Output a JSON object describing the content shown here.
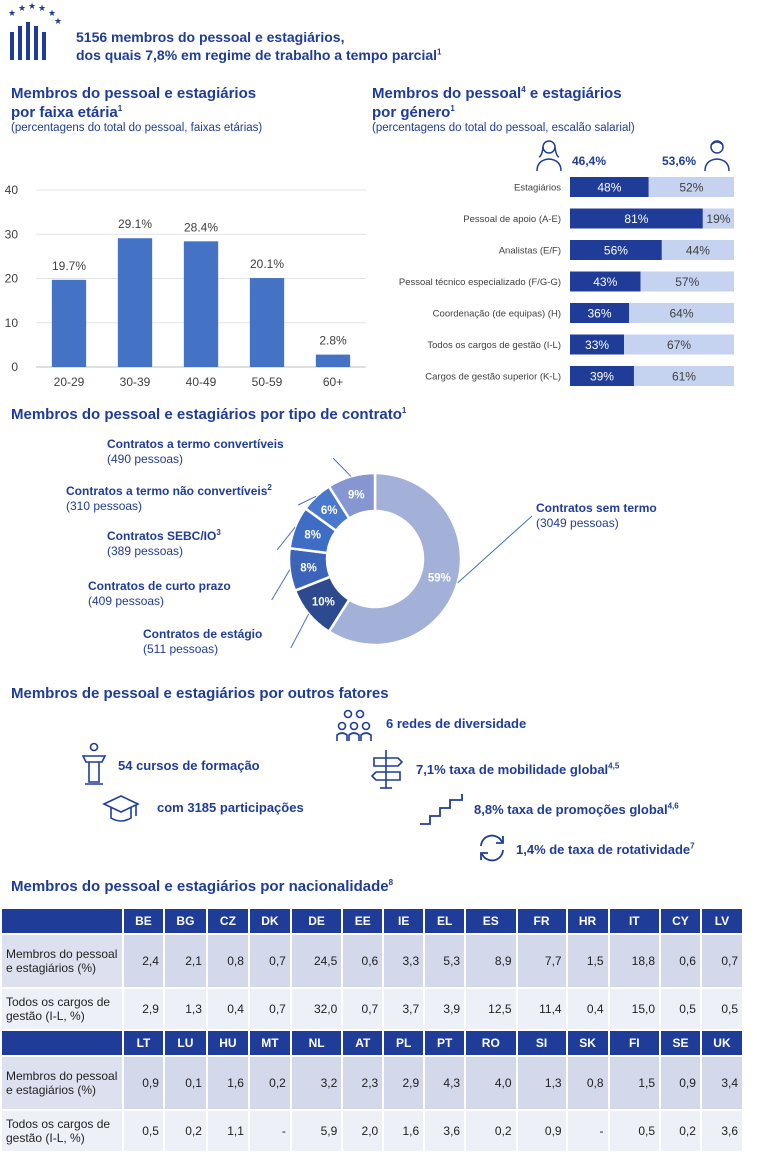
{
  "header": {
    "line1": "5156 membros do pessoal e estagiários,",
    "line2": "dos quais 7,8% em regime de trabalho a tempo parcial",
    "line2_sup": "1"
  },
  "age_section": {
    "title1": "Membros do pessoal e estagiários",
    "title2": "por faixa etária",
    "title2_sup": "1",
    "subtitle": "(percentagens do total do pessoal, faixas etárias)"
  },
  "gender_section": {
    "title1": "Membros do pessoal",
    "title1_sup": "4",
    "title1_rest": " e estagiários",
    "title2": "por género",
    "title2_sup": "1",
    "subtitle": "(percentagens do total do pessoal, escalão salarial)",
    "female_total": "46,4%",
    "male_total": "53,6%"
  },
  "contract_section": {
    "title": "Membros do pessoal e estagiários por tipo de contrato",
    "title_sup": "1"
  },
  "factors_section": {
    "title": "Membros de pessoal e estagiários por outros fatores",
    "diversity": "6 redes de diversidade",
    "courses": "54 cursos de formação",
    "participants": "com 3185 participações",
    "mobility": "7,1% taxa de mobilidade global",
    "mobility_sup": "4,5",
    "promotions": "8,8% taxa de promoções global",
    "promotions_sup": "4,6",
    "turnover": "1,4% de taxa de rotatividade",
    "turnover_sup": "7"
  },
  "nationality_section": {
    "title": "Membros do pessoal e estagiários por nacionalidade",
    "title_sup": "8",
    "row_label_staff": "Membros do pessoal e estagiários (%)",
    "row_label_mgmt": "Todos os cargos de gestão (I-L, %)",
    "blocks": [
      {
        "codes": [
          "BE",
          "BG",
          "CZ",
          "DK",
          "DE",
          "EE",
          "IE",
          "EL",
          "ES",
          "FR",
          "HR",
          "IT",
          "CY",
          "LV"
        ],
        "staff": [
          "2,4",
          "2,1",
          "0,8",
          "0,7",
          "24,5",
          "0,6",
          "3,3",
          "5,3",
          "8,9",
          "7,7",
          "1,5",
          "18,8",
          "0,6",
          "0,7"
        ],
        "mgmt": [
          "2,9",
          "1,3",
          "0,4",
          "0,7",
          "32,0",
          "0,7",
          "3,7",
          "3,9",
          "12,5",
          "11,4",
          "0,4",
          "15,0",
          "0,5",
          "0,5"
        ]
      },
      {
        "codes": [
          "LT",
          "LU",
          "HU",
          "MT",
          "NL",
          "AT",
          "PL",
          "PT",
          "RO",
          "SI",
          "SK",
          "FI",
          "SE",
          "UK"
        ],
        "staff": [
          "0,9",
          "0,1",
          "1,6",
          "0,2",
          "3,2",
          "2,3",
          "2,9",
          "4,3",
          "4,0",
          "1,3",
          "0,8",
          "1,5",
          "0,9",
          "3,4"
        ],
        "mgmt": [
          "0,5",
          "0,2",
          "1,1",
          "-",
          "5,9",
          "2,0",
          "1,6",
          "3,6",
          "0,2",
          "0,9",
          "-",
          "0,5",
          "0,2",
          "3,6"
        ]
      }
    ]
  },
  "chart_data": [
    {
      "type": "bar",
      "title": "Membros do pessoal e estagiários por faixa etária",
      "categories": [
        "20-29",
        "30-39",
        "40-49",
        "50-59",
        "60+"
      ],
      "values": [
        19.7,
        29.1,
        28.4,
        20.1,
        2.8
      ],
      "value_labels": [
        "19.7%",
        "29.1%",
        "28.4%",
        "20.1%",
        "2.8%"
      ],
      "ylim": [
        0,
        40
      ],
      "yticks": [
        0,
        10,
        20,
        30,
        40
      ],
      "grid": true,
      "color": "#4472c4"
    },
    {
      "type": "bar",
      "orientation": "horizontal-stacked",
      "title": "Membros do pessoal e estagiários por género",
      "categories": [
        "Estagiários",
        "Pessoal de apoio (A-E)",
        "Analistas (E/F)",
        "Pessoal técnico especializado (F/G-G)",
        "Coordenação (de equipas) (H)",
        "Todos os cargos de gestão (I-L)",
        "Cargos de gestão superior (K-L)"
      ],
      "series": [
        {
          "values": [
            48,
            81,
            56,
            43,
            36,
            33,
            39
          ],
          "labels": [
            "48%",
            "81%",
            "56%",
            "43%",
            "36%",
            "33%",
            "39%"
          ],
          "color": "#1f3c99"
        },
        {
          "values": [
            52,
            19,
            44,
            57,
            64,
            67,
            61
          ],
          "labels": [
            "52%",
            "19%",
            "44%",
            "57%",
            "64%",
            "67%",
            "61%"
          ],
          "color": "#c5d2f0"
        }
      ],
      "xlim": [
        0,
        100
      ]
    },
    {
      "type": "pie",
      "title": "Membros do pessoal e estagiários por tipo de contrato",
      "slices": [
        {
          "name": "Contratos sem termo",
          "count": "(3049 pessoas)",
          "value": 59,
          "label": "59%",
          "color": "#a3b1d9"
        },
        {
          "name": "Contratos de estágio",
          "count": "(511 pessoas)",
          "value": 10,
          "label": "10%",
          "color": "#2d4a8f"
        },
        {
          "name": "Contratos de curto prazo",
          "count": "(409 pessoas)",
          "value": 8,
          "label": "8%",
          "color": "#3b63b8"
        },
        {
          "name": "Contratos SEBC/IO",
          "sup": "3",
          "count": "(389 pessoas)",
          "value": 8,
          "label": "8%",
          "color": "#3f6cc4"
        },
        {
          "name": "Contratos a termo não convertíveis",
          "sup": "2",
          "count": "(310 pessoas)",
          "value": 6,
          "label": "6%",
          "color": "#4a78cc"
        },
        {
          "name": "Contratos a termo convertíveis",
          "count": "(490 pessoas)",
          "value": 9,
          "label": "9%",
          "color": "#8596d0"
        }
      ]
    }
  ]
}
